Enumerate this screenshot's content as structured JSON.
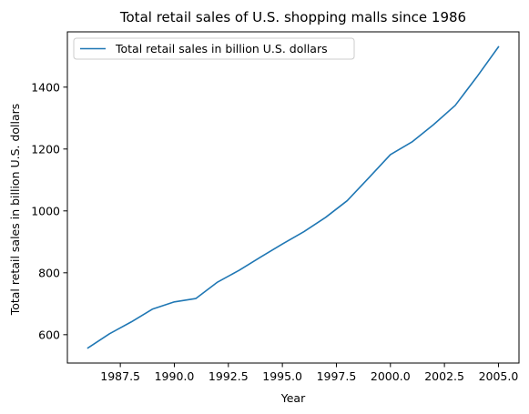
{
  "chart_data": {
    "type": "line",
    "title": "Total retail sales of U.S. shopping malls since 1986",
    "xlabel": "Year",
    "ylabel": "Total retail sales in billion U.S. dollars",
    "x": [
      1986,
      1987,
      1988,
      1989,
      1990,
      1991,
      1992,
      1993,
      1994,
      1995,
      1996,
      1997,
      1998,
      1999,
      2000,
      2001,
      2002,
      2003,
      2004,
      2005
    ],
    "series": [
      {
        "name": "Total retail sales in billion U.S. dollars",
        "color": "#1f77b4",
        "values": [
          557,
          603,
          641,
          683,
          706,
          717,
          770,
          808,
          851,
          893,
          933,
          979,
          1033,
          1107,
          1182,
          1223,
          1279,
          1341,
          1433,
          1530
        ]
      }
    ],
    "xlim": [
      1985.05,
      2005.95
    ],
    "ylim": [
      508.35,
      1578.65
    ],
    "xticks": [
      1987.5,
      1990.0,
      1992.5,
      1995.0,
      1997.5,
      2000.0,
      2002.5,
      2005.0
    ],
    "xtick_labels": [
      "1987.5",
      "1990.0",
      "1992.5",
      "1995.0",
      "1997.5",
      "2000.0",
      "2002.5",
      "2005.0"
    ],
    "yticks": [
      600,
      800,
      1000,
      1200,
      1400
    ],
    "ytick_labels": [
      "600",
      "800",
      "1000",
      "1200",
      "1400"
    ],
    "grid": false,
    "legend_position": "top-left"
  }
}
